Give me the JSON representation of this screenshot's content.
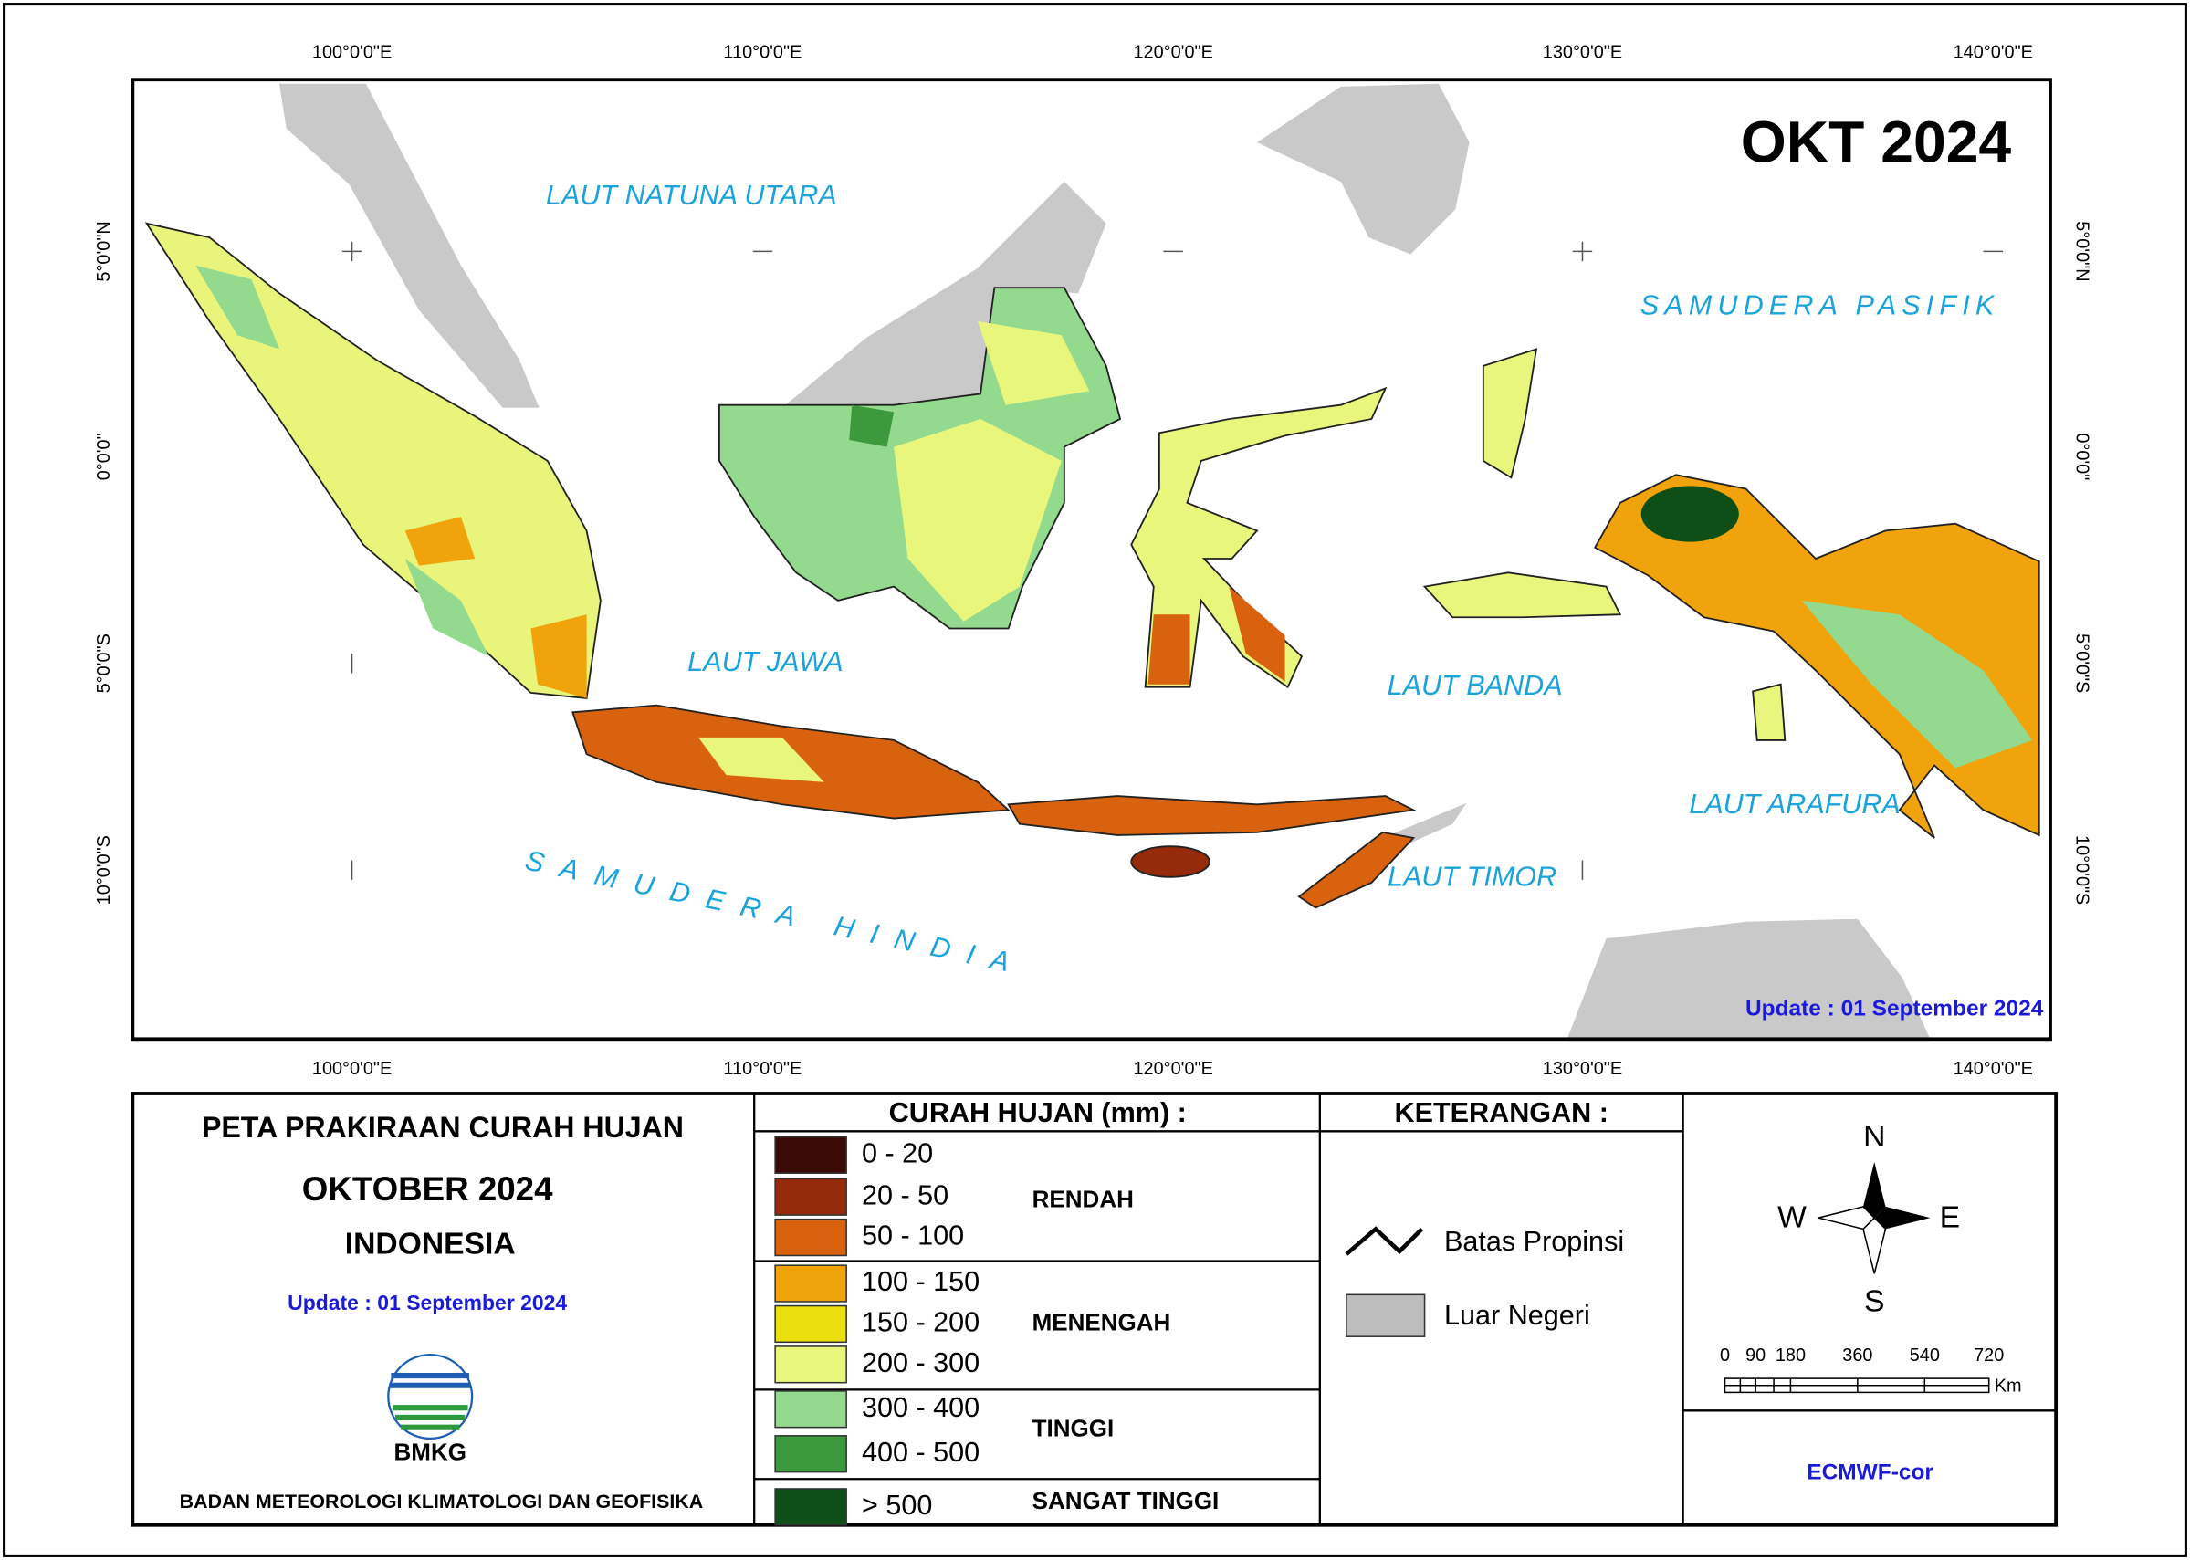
{
  "map": {
    "title": "OKT 2024",
    "update": "Update : 01 September  2024",
    "lon_labels": [
      "100°0'0\"E",
      "110°0'0\"E",
      "120°0'0\"E",
      "130°0'0\"E",
      "140°0'0\"E"
    ],
    "lat_labels": [
      "5°0'0\"N",
      "0°0'0\"",
      "5°0'0\"S",
      "10°0'0\"S"
    ],
    "sea_labels": [
      "LAUT NATUNA UTARA",
      "SAMUDERA PASIFIK",
      "LAUT JAWA",
      "LAUT BANDA",
      "LAUT ARAFURA",
      "LAUT TIMOR",
      "SAMUDERA HINDIA"
    ]
  },
  "panel": {
    "title": "PETA PRAKIRAAN CURAH HUJAN",
    "subtitle": "OKTOBER 2024",
    "region": "INDONESIA",
    "update": "Update : 01 September  2024",
    "logo": "BMKG",
    "agency": "BADAN METEOROLOGI KLIMATOLOGI DAN GEOFISIKA"
  },
  "legend": {
    "title": "CURAH HUJAN (mm) :",
    "classes": [
      {
        "label": "0 - 20",
        "color": "#3a0b06"
      },
      {
        "label": "20 - 50",
        "color": "#952b0a"
      },
      {
        "label": "50 - 100",
        "color": "#d9620f"
      },
      {
        "label": "100 - 150",
        "color": "#f0a30a"
      },
      {
        "label": "150 - 200",
        "color": "#ebe00e"
      },
      {
        "label": "200 - 300",
        "color": "#e9f67c"
      },
      {
        "label": "300 - 400",
        "color": "#93d98e"
      },
      {
        "label": "400 - 500",
        "color": "#3c9a3d"
      },
      {
        "label": "> 500",
        "color": "#0d4f16"
      }
    ],
    "groups": [
      "RENDAH",
      "MENENGAH",
      "TINGGI",
      "SANGAT TINGGI"
    ]
  },
  "keterangan": {
    "title": "KETERANGAN :",
    "items": [
      "Batas Propinsi",
      "Luar Negeri"
    ]
  },
  "compass": {
    "n": "N",
    "s": "S",
    "e": "E",
    "w": "W"
  },
  "scale": {
    "ticks": [
      "0",
      "90",
      "180",
      "360",
      "540",
      "720"
    ],
    "unit": "Km"
  },
  "model": "ECMWF-cor"
}
